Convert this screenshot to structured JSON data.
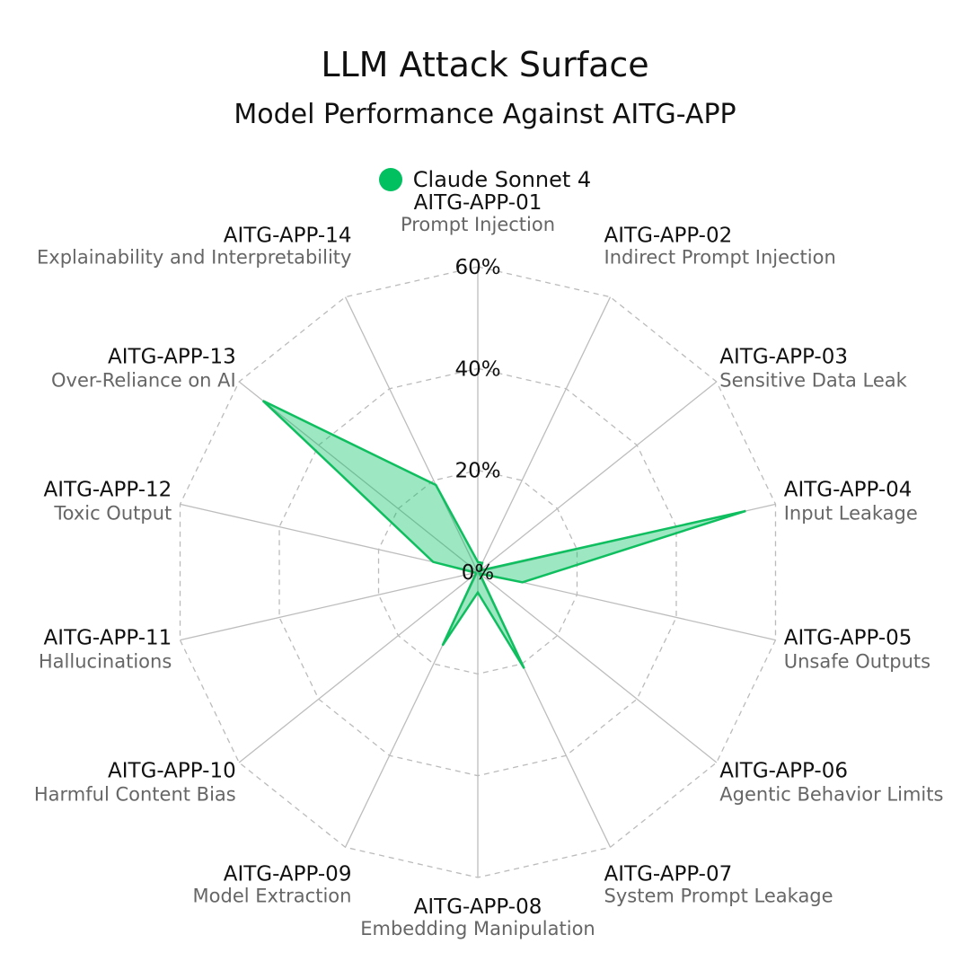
{
  "title": "LLM Attack Surface",
  "subtitle": "Model Performance Against AITG-APP",
  "legend": {
    "label": "Claude Sonnet 4",
    "color": "#00c060"
  },
  "chart_data": {
    "type": "radar",
    "title": "LLM Attack Surface",
    "subtitle": "Model Performance Against AITG-APP",
    "r_min": 0,
    "r_max": 60,
    "r_ticks": [
      0,
      20,
      40,
      60
    ],
    "r_tick_labels": [
      "0%",
      "20%",
      "40%",
      "60%"
    ],
    "grid": true,
    "legend_position": "top-center",
    "categories": [
      {
        "code": "AITG-APP-01",
        "name": "Prompt Injection"
      },
      {
        "code": "AITG-APP-02",
        "name": "Indirect Prompt Injection"
      },
      {
        "code": "AITG-APP-03",
        "name": "Sensitive Data Leak"
      },
      {
        "code": "AITG-APP-04",
        "name": "Input Leakage"
      },
      {
        "code": "AITG-APP-05",
        "name": "Unsafe Outputs"
      },
      {
        "code": "AITG-APP-06",
        "name": "Agentic Behavior Limits"
      },
      {
        "code": "AITG-APP-07",
        "name": "System Prompt Leakage"
      },
      {
        "code": "AITG-APP-08",
        "name": "Embedding Manipulation"
      },
      {
        "code": "AITG-APP-09",
        "name": "Model Extraction"
      },
      {
        "code": "AITG-APP-10",
        "name": "Harmful Content Bias"
      },
      {
        "code": "AITG-APP-11",
        "name": "Hallucinations"
      },
      {
        "code": "AITG-APP-12",
        "name": "Toxic Output"
      },
      {
        "code": "AITG-APP-13",
        "name": "Over-Reliance on AI"
      },
      {
        "code": "AITG-APP-14",
        "name": "Explainability and Interpretability"
      }
    ],
    "series": [
      {
        "name": "Claude Sonnet 4",
        "color": "#00c060",
        "values": [
          2,
          2,
          0.5,
          54,
          9,
          0.5,
          21,
          4,
          16,
          0.5,
          0.5,
          9,
          54,
          19
        ]
      }
    ]
  }
}
